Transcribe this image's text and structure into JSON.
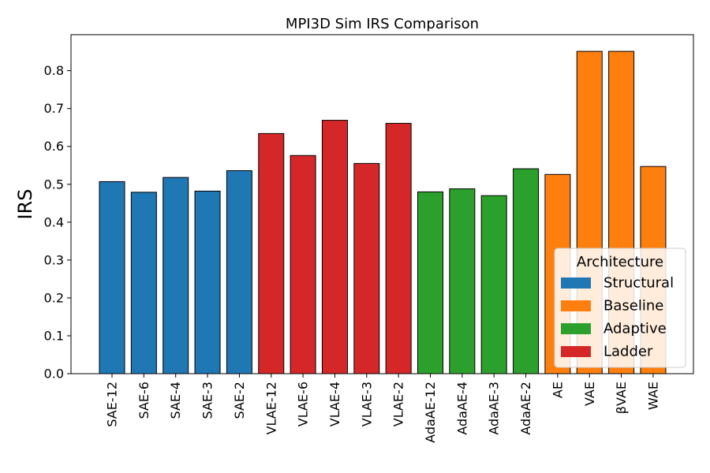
{
  "chart_data": {
    "type": "bar",
    "title": "MPI3D Sim IRS Comparison",
    "xlabel": "",
    "ylabel": "IRS",
    "ylim": [
      0,
      0.895
    ],
    "yticks": [
      "0.0",
      "0.1",
      "0.2",
      "0.3",
      "0.4",
      "0.5",
      "0.6",
      "0.7",
      "0.8"
    ],
    "grid": false,
    "categories": [
      "SAE-12",
      "SAE-6",
      "SAE-4",
      "SAE-3",
      "SAE-2",
      "VLAE-12",
      "VLAE-6",
      "VLAE-4",
      "VLAE-3",
      "VLAE-2",
      "AdaAE-12",
      "AdaAE-4",
      "AdaAE-3",
      "AdaAE-2",
      "AE",
      "VAE",
      "βVAE",
      "WAE"
    ],
    "values": [
      0.507,
      0.479,
      0.518,
      0.482,
      0.536,
      0.634,
      0.576,
      0.669,
      0.555,
      0.661,
      0.48,
      0.488,
      0.47,
      0.541,
      0.526,
      0.851,
      0.851,
      0.547
    ],
    "groups": [
      "Structural",
      "Structural",
      "Structural",
      "Structural",
      "Structural",
      "Ladder",
      "Ladder",
      "Ladder",
      "Ladder",
      "Ladder",
      "Adaptive",
      "Adaptive",
      "Adaptive",
      "Adaptive",
      "Baseline",
      "Baseline",
      "Baseline",
      "Baseline"
    ],
    "legend": {
      "title": "Architecture",
      "placement": "lower-right",
      "entries": [
        {
          "name": "Structural",
          "color": "#1f77b4"
        },
        {
          "name": "Baseline",
          "color": "#ff7f0e"
        },
        {
          "name": "Adaptive",
          "color": "#2ca02c"
        },
        {
          "name": "Ladder",
          "color": "#d62728"
        }
      ]
    }
  }
}
